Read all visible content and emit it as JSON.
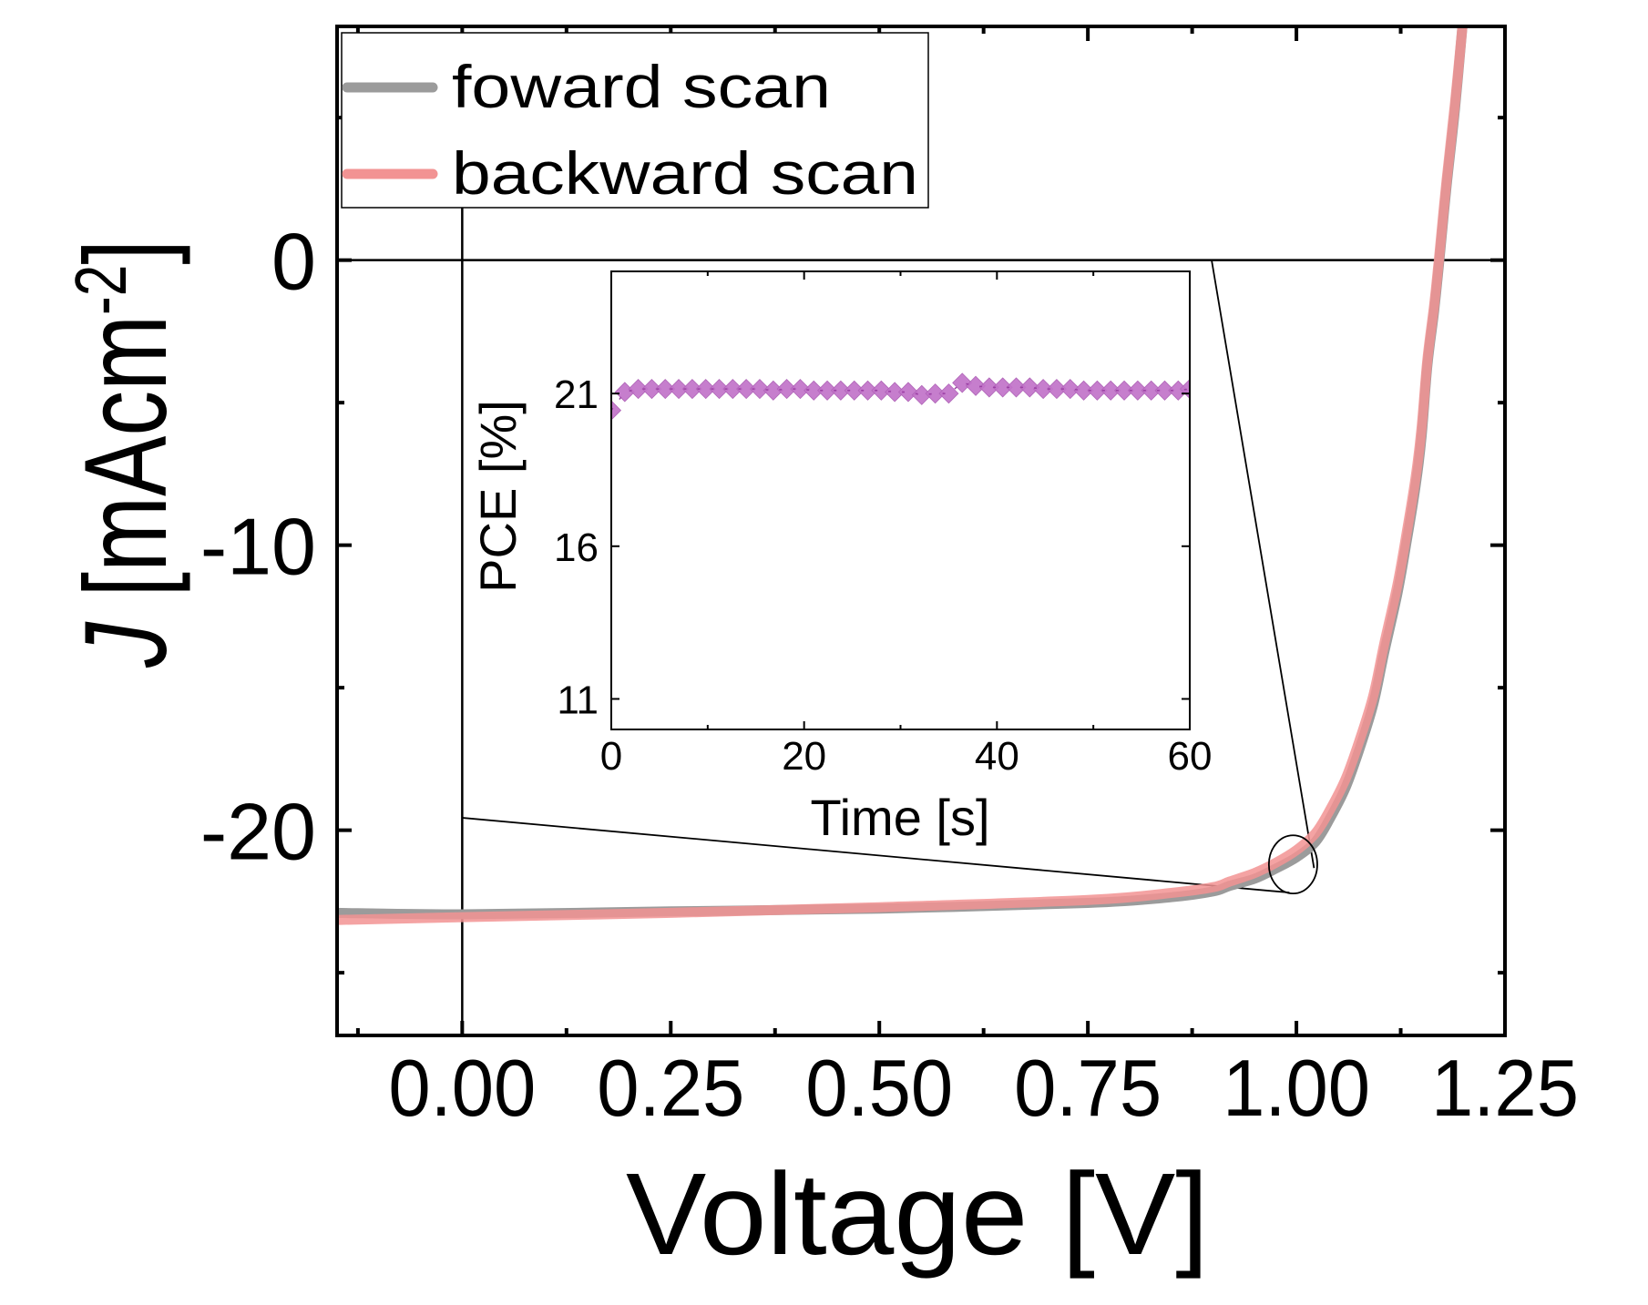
{
  "chart_data": [
    {
      "id": "main",
      "type": "line",
      "title": "",
      "xlabel": "Voltage [V]",
      "ylabel_italic": "J",
      "ylabel_rest": " [mAcm",
      "ylabel_sup": "-2",
      "ylabel_close": "]",
      "xlim": [
        -0.15,
        1.25
      ],
      "ylim": [
        -27.2,
        8.2
      ],
      "xticks": [
        0.0,
        0.25,
        0.5,
        0.75,
        1.0,
        1.25
      ],
      "xtick_labels": [
        "0.00",
        "0.25",
        "0.50",
        "0.75",
        "1.00",
        "1.25"
      ],
      "xminor_ticks": [
        -0.125,
        0.125,
        0.375,
        0.625,
        0.875,
        1.125
      ],
      "yticks": [
        0,
        -10,
        -20
      ],
      "ytick_labels": [
        "0",
        "-10",
        "-20"
      ],
      "yminor_ticks": [
        5,
        -5,
        -15,
        -25
      ],
      "grid": false,
      "reference_lines": {
        "y_zero": 0,
        "x_zero": 0
      },
      "legend": {
        "placement": "top-left",
        "entries": [
          "foward scan",
          "backward scan"
        ]
      },
      "series": [
        {
          "name": "foward scan",
          "color": "#9b9b9b",
          "x": [
            -0.15,
            0.0,
            0.25,
            0.5,
            0.75,
            0.85,
            0.9,
            0.92,
            0.95,
            0.975,
            1.0,
            1.023,
            1.04,
            1.059,
            1.075,
            1.092,
            1.105,
            1.121,
            1.132,
            1.143,
            1.15,
            1.157,
            1.165,
            1.171,
            1.18,
            1.19,
            1.199
          ],
          "y": [
            -22.9,
            -22.95,
            -22.85,
            -22.75,
            -22.55,
            -22.35,
            -22.15,
            -21.95,
            -21.7,
            -21.35,
            -20.95,
            -20.4,
            -19.6,
            -18.5,
            -17.2,
            -15.6,
            -13.8,
            -11.7,
            -9.9,
            -7.9,
            -6.2,
            -3.7,
            -1.8,
            -0.1,
            2.6,
            5.3,
            8.2
          ]
        },
        {
          "name": "backward scan",
          "color": "#f29393",
          "x": [
            -0.15,
            0.0,
            0.25,
            0.5,
            0.75,
            0.85,
            0.9,
            0.92,
            0.95,
            0.975,
            1.0,
            1.023,
            1.04,
            1.059,
            1.075,
            1.092,
            1.105,
            1.121,
            1.132,
            1.143,
            1.15,
            1.157,
            1.165,
            1.171,
            1.18,
            1.19,
            1.199
          ],
          "y": [
            -23.15,
            -23.05,
            -22.9,
            -22.7,
            -22.45,
            -22.2,
            -22.0,
            -21.8,
            -21.5,
            -21.15,
            -20.7,
            -20.1,
            -19.3,
            -18.2,
            -16.9,
            -15.3,
            -13.5,
            -11.4,
            -9.6,
            -7.6,
            -5.9,
            -3.5,
            -1.6,
            0.1,
            2.8,
            5.5,
            8.2
          ]
        }
      ],
      "annotations": [
        {
          "type": "ellipse",
          "label": "zoom-region",
          "x": 0.996,
          "y": -21.2,
          "rx_v": 0.029,
          "ry_j": 1.02
        }
      ]
    },
    {
      "id": "inset",
      "type": "scatter",
      "title": "",
      "xlabel": "Time [s]",
      "ylabel": "PCE [%]",
      "xlim": [
        0,
        60
      ],
      "ylim": [
        10,
        25
      ],
      "xticks": [
        0,
        20,
        40,
        60
      ],
      "xtick_labels": [
        "0",
        "20",
        "40",
        "60"
      ],
      "xminor_ticks": [
        10,
        30,
        50
      ],
      "yticks": [
        11,
        16,
        21
      ],
      "ytick_labels": [
        "11",
        "16",
        "21"
      ],
      "grid": false,
      "marker": "diamond",
      "series": [
        {
          "name": "PCE",
          "color": "#c173c9",
          "x": [
            0,
            1.4,
            2.8,
            4.2,
            5.6,
            7.0,
            8.4,
            9.8,
            11.2,
            12.6,
            14.0,
            15.4,
            16.8,
            18.2,
            19.6,
            21.0,
            22.4,
            23.8,
            25.2,
            26.6,
            28.0,
            29.4,
            30.8,
            32.2,
            33.6,
            35.0,
            36.4,
            37.8,
            39.2,
            40.6,
            42.0,
            43.4,
            44.8,
            46.2,
            47.6,
            49.0,
            50.4,
            51.8,
            53.2,
            54.6,
            56.0,
            57.4,
            58.8,
            60.0
          ],
          "y": [
            20.45,
            21.05,
            21.15,
            21.15,
            21.15,
            21.15,
            21.15,
            21.15,
            21.15,
            21.15,
            21.15,
            21.15,
            21.1,
            21.15,
            21.15,
            21.1,
            21.1,
            21.1,
            21.1,
            21.1,
            21.1,
            21.05,
            21.05,
            20.95,
            21.0,
            21.0,
            21.35,
            21.25,
            21.2,
            21.2,
            21.2,
            21.2,
            21.15,
            21.15,
            21.15,
            21.1,
            21.1,
            21.1,
            21.1,
            21.1,
            21.1,
            21.1,
            21.1,
            21.15
          ]
        }
      ]
    }
  ]
}
